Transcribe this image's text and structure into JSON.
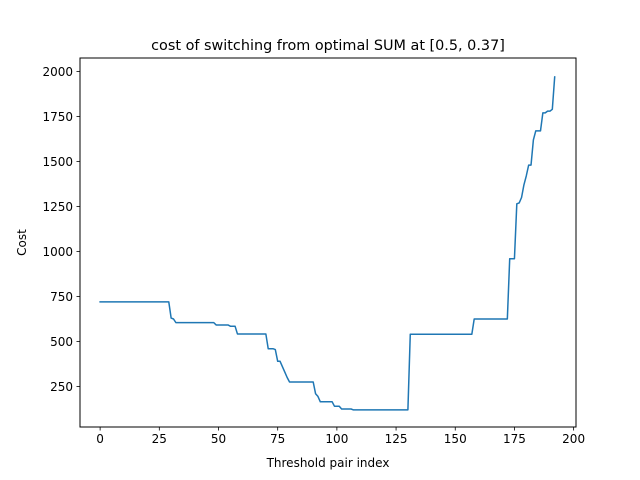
{
  "chart_data": {
    "type": "line",
    "title": "cost of switching from optimal SUM at [0.5, 0.37]",
    "xlabel": "Threshold pair index",
    "ylabel": "Cost",
    "xlim": [
      -8.5,
      201
    ],
    "ylim": [
      25,
      2075
    ],
    "xticks": [
      0,
      25,
      50,
      75,
      100,
      125,
      150,
      175,
      200
    ],
    "yticks": [
      250,
      500,
      750,
      1000,
      1250,
      1500,
      1750,
      2000
    ],
    "xtick_labels": [
      "0",
      "25",
      "50",
      "75",
      "100",
      "125",
      "150",
      "175",
      "200"
    ],
    "ytick_labels": [
      "250",
      "500",
      "750",
      "1000",
      "1250",
      "1500",
      "1750",
      "2000"
    ],
    "grid": false,
    "legend": "none",
    "series": [
      {
        "color": "#1f77b4",
        "x": [
          0,
          29,
          30,
          31,
          32,
          33,
          48,
          49,
          54,
          55,
          57,
          58,
          70,
          71,
          73,
          74,
          75,
          76,
          77,
          78,
          79,
          80,
          90,
          91,
          92,
          93,
          98,
          99,
          101,
          102,
          106,
          107,
          130,
          131,
          157,
          158,
          172,
          173,
          175,
          176,
          177,
          178,
          179,
          180,
          181,
          182,
          183,
          184,
          185,
          186,
          187,
          188,
          189,
          190,
          191,
          192
        ],
        "y": [
          720,
          720,
          630,
          625,
          605,
          605,
          605,
          592,
          592,
          585,
          585,
          542,
          542,
          460,
          460,
          455,
          390,
          390,
          360,
          330,
          300,
          275,
          275,
          210,
          195,
          165,
          165,
          140,
          140,
          125,
          125,
          120,
          120,
          540,
          540,
          625,
          625,
          960,
          960,
          1265,
          1270,
          1300,
          1370,
          1420,
          1480,
          1480,
          1620,
          1670,
          1670,
          1670,
          1770,
          1770,
          1780,
          1780,
          1790,
          1970
        ]
      }
    ]
  }
}
